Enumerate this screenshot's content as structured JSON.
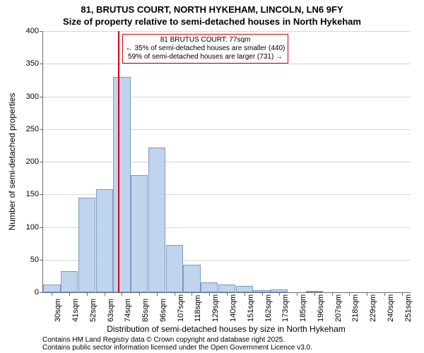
{
  "title_line1": "81, BRUTUS COURT, NORTH HYKEHAM, LINCOLN, LN6 9FY",
  "title_line2": "Size of property relative to semi-detached houses in North Hykeham",
  "ylabel": "Number of semi-detached properties",
  "xlabel": "Distribution of semi-detached houses by size in North Hykeham",
  "footer_line1": "Contains HM Land Registry data © Crown copyright and database right 2025.",
  "footer_line2": "Contains public sector information licensed under the Open Government Licence v3.0.",
  "chart": {
    "type": "histogram",
    "ylim": [
      0,
      400
    ],
    "ytick_step": 50,
    "background_color": "#ffffff",
    "grid_color": "#d6d6d6",
    "axis_color": "#6b6b6b",
    "bar_fill": "#c1d4ed",
    "bar_border": "#7a9bc6",
    "marker_color": "#d4000f",
    "categories": [
      "30sqm",
      "41sqm",
      "52sqm",
      "63sqm",
      "74sqm",
      "85sqm",
      "96sqm",
      "107sqm",
      "118sqm",
      "129sqm",
      "140sqm",
      "151sqm",
      "162sqm",
      "173sqm",
      "185sqm",
      "196sqm",
      "207sqm",
      "218sqm",
      "229sqm",
      "240sqm",
      "251sqm"
    ],
    "values": [
      12,
      32,
      145,
      158,
      330,
      180,
      222,
      72,
      42,
      15,
      12,
      10,
      3,
      4,
      0,
      2,
      0,
      0,
      0,
      0,
      0
    ],
    "marker_category_index": 4,
    "marker_fraction_into_bar": 0.27,
    "annotation": {
      "line1": "81 BRUTUS COURT: 77sqm",
      "line2": "← 35% of semi-detached houses are smaller (440)",
      "line3": "59% of semi-detached houses are larger (731) →"
    },
    "title_fontsize": 13,
    "label_fontsize": 12,
    "tick_fontsize": 11,
    "annotation_fontsize": 10,
    "footer_fontsize": 10
  }
}
